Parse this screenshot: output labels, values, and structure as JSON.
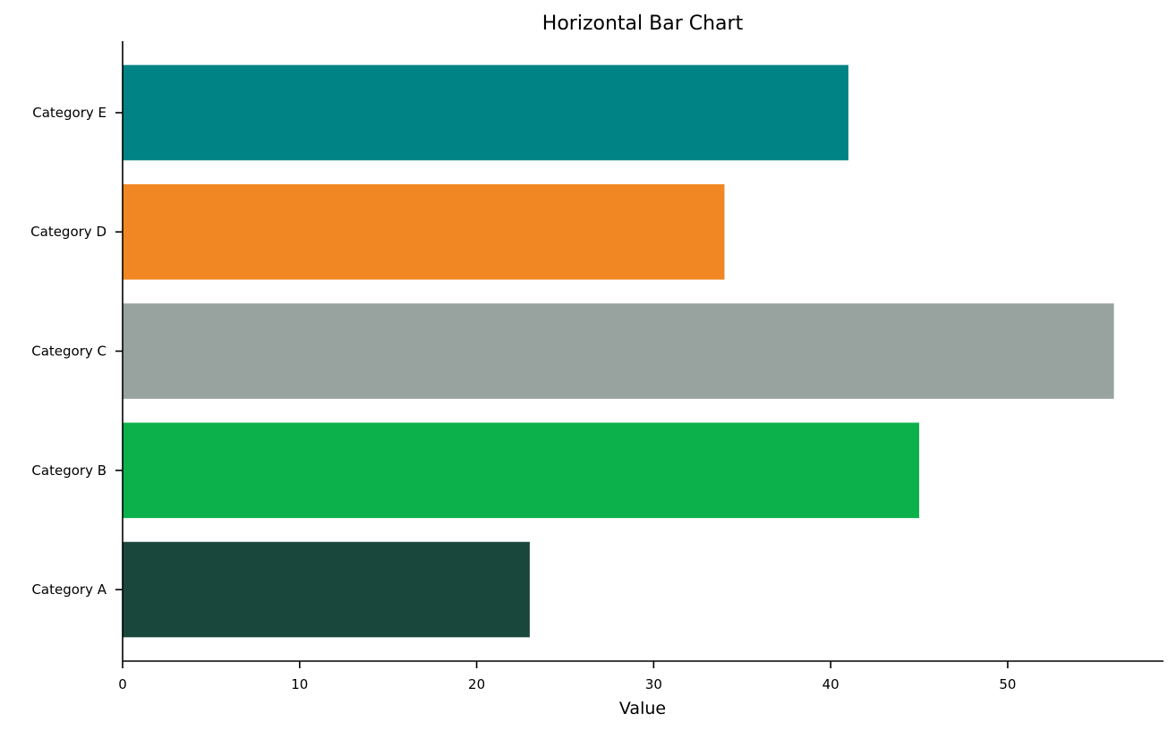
{
  "chart_data": {
    "type": "bar",
    "orientation": "horizontal",
    "title": "Horizontal Bar Chart",
    "xlabel": "Value",
    "ylabel": "",
    "categories": [
      "Category A",
      "Category B",
      "Category C",
      "Category D",
      "Category E"
    ],
    "values": [
      23,
      45,
      56,
      34,
      41
    ],
    "colors": [
      "#1a473c",
      "#0db14b",
      "#98a3a0",
      "#f18722",
      "#008384"
    ],
    "xlim": [
      0,
      58.8
    ],
    "xticks": [
      0,
      10,
      20,
      30,
      40,
      50
    ],
    "grid": false,
    "legend": "none"
  }
}
